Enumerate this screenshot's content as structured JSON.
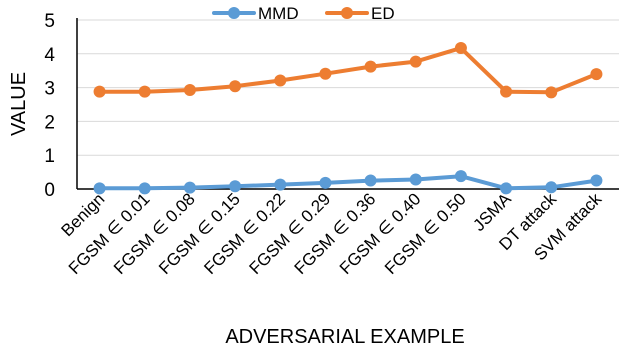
{
  "chart_data": {
    "type": "line",
    "title": "",
    "xlabel": "ADVERSARIAL EXAMPLE",
    "ylabel": "VALUE",
    "ylim": [
      0,
      5
    ],
    "yticks": [
      0,
      1,
      2,
      3,
      4,
      5
    ],
    "grid": "horizontal",
    "legend_position": "top",
    "categories": [
      "Benign",
      "FGSM ∈ 0.01",
      "FGSM ∈ 0.08",
      "FGSM ∈ 0.15",
      "FGSM ∈ 0.22",
      "FGSM ∈ 0.29",
      "FGSM ∈ 0.36",
      "FGSM ∈ 0.40",
      "FGSM ∈ 0.50",
      "JSMA",
      "DT attack",
      "SVM attack"
    ],
    "series": [
      {
        "name": "MMD",
        "color": "#5B9BD5",
        "values": [
          0.02,
          0.02,
          0.04,
          0.08,
          0.13,
          0.18,
          0.25,
          0.28,
          0.38,
          0.02,
          0.05,
          0.25
        ]
      },
      {
        "name": "ED",
        "color": "#ED7D31",
        "values": [
          2.88,
          2.88,
          2.93,
          3.04,
          3.21,
          3.41,
          3.62,
          3.77,
          4.17,
          2.88,
          2.86,
          3.4
        ]
      }
    ]
  }
}
